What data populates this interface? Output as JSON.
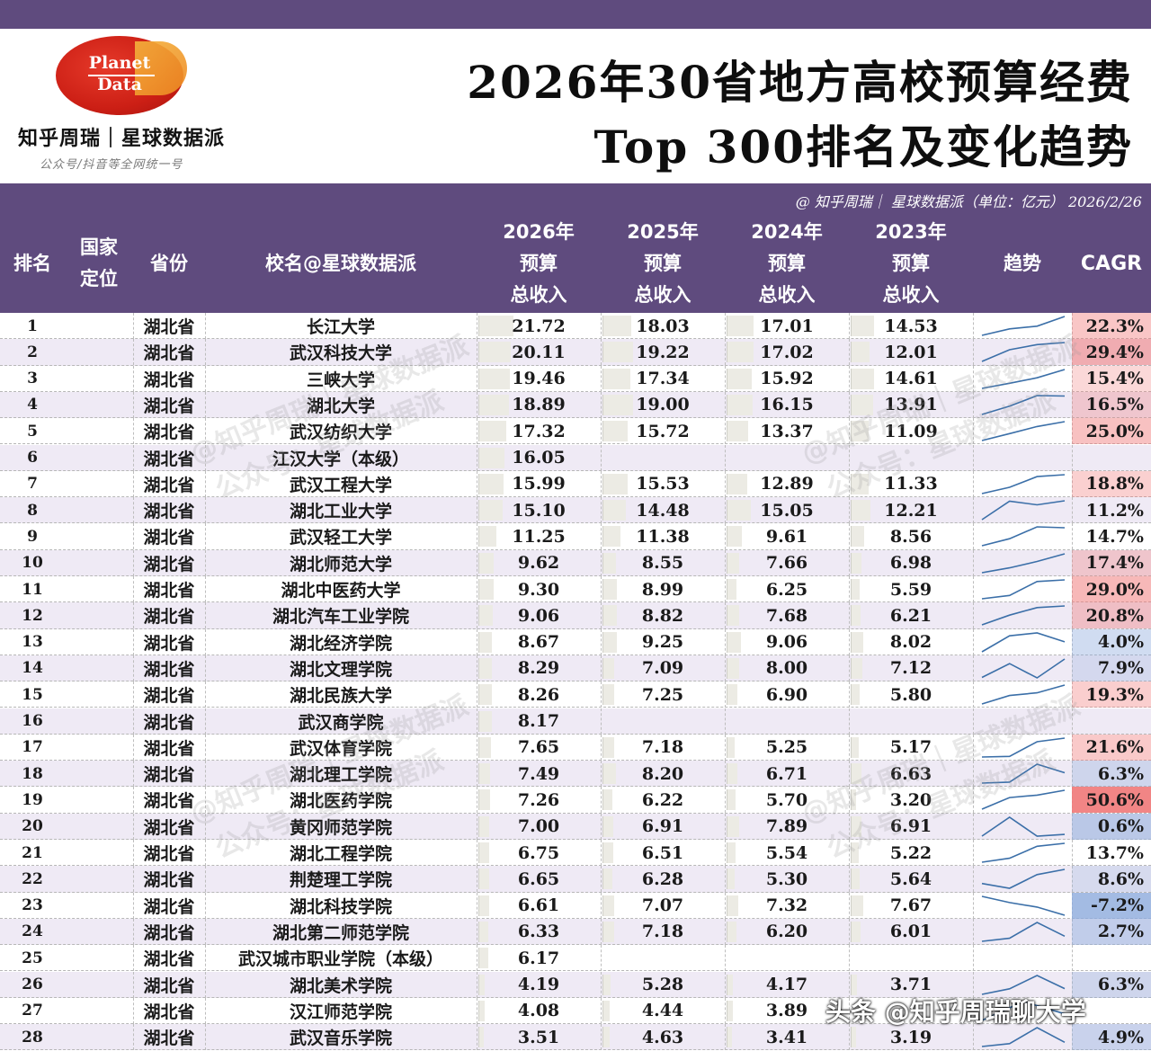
{
  "logo": {
    "line1": "Planet",
    "line2": "Data"
  },
  "brand": {
    "name": "知乎周瑞｜星球数据派",
    "sub": "公众号/抖音等全网统一号"
  },
  "title": {
    "line1": "2026年30省地方高校预算经费",
    "line2": "Top 300排名及变化趋势"
  },
  "credit": "@ 知乎周瑞｜ 星球数据派（单位：亿元） 2026/2/26",
  "headers": {
    "rank": [
      "排名"
    ],
    "national": [
      "国家",
      "定位"
    ],
    "province": [
      "省份"
    ],
    "school": [
      "校名@星球数据派"
    ],
    "y2026": [
      "2026年",
      "预算",
      "总收入"
    ],
    "y2025": [
      "2025年",
      "预算",
      "总收入"
    ],
    "y2024": [
      "2024年",
      "预算",
      "总收入"
    ],
    "y2023": [
      "2023年",
      "预算",
      "总收入"
    ],
    "trend": [
      "趋势"
    ],
    "cagr": [
      "CAGR"
    ]
  },
  "colors": {
    "header_bg": "#5f4b7e",
    "cagr_pos": "#f08a8a",
    "cagr_neg": "#9fb8e0"
  },
  "rows": [
    {
      "rank": "1",
      "prov": "湖北省",
      "school": "长江大学",
      "v2026": "21.72",
      "v2025": "18.03",
      "v2024": "17.01",
      "v2023": "14.53",
      "cagr": "22.3%",
      "c": 22.3
    },
    {
      "rank": "2",
      "prov": "湖北省",
      "school": "武汉科技大学",
      "v2026": "20.11",
      "v2025": "19.22",
      "v2024": "17.02",
      "v2023": "12.01",
      "cagr": "29.4%",
      "c": 29.4
    },
    {
      "rank": "3",
      "prov": "湖北省",
      "school": "三峡大学",
      "v2026": "19.46",
      "v2025": "17.34",
      "v2024": "15.92",
      "v2023": "14.61",
      "cagr": "15.4%",
      "c": 15.4
    },
    {
      "rank": "4",
      "prov": "湖北省",
      "school": "湖北大学",
      "v2026": "18.89",
      "v2025": "19.00",
      "v2024": "16.15",
      "v2023": "13.91",
      "cagr": "16.5%",
      "c": 16.5
    },
    {
      "rank": "5",
      "prov": "湖北省",
      "school": "武汉纺织大学",
      "v2026": "17.32",
      "v2025": "15.72",
      "v2024": "13.37",
      "v2023": "11.09",
      "cagr": "25.0%",
      "c": 25.0
    },
    {
      "rank": "6",
      "prov": "湖北省",
      "school": "江汉大学（本级）",
      "v2026": "16.05",
      "v2025": "",
      "v2024": "",
      "v2023": "",
      "cagr": "",
      "c": null
    },
    {
      "rank": "7",
      "prov": "湖北省",
      "school": "武汉工程大学",
      "v2026": "15.99",
      "v2025": "15.53",
      "v2024": "12.89",
      "v2023": "11.33",
      "cagr": "18.8%",
      "c": 18.8
    },
    {
      "rank": "8",
      "prov": "湖北省",
      "school": "湖北工业大学",
      "v2026": "15.10",
      "v2025": "14.48",
      "v2024": "15.05",
      "v2023": "12.21",
      "cagr": "11.2%",
      "c": 11.2
    },
    {
      "rank": "9",
      "prov": "湖北省",
      "school": "武汉轻工大学",
      "v2026": "11.25",
      "v2025": "11.38",
      "v2024": "9.61",
      "v2023": "8.56",
      "cagr": "14.7%",
      "c": 14.7
    },
    {
      "rank": "10",
      "prov": "湖北省",
      "school": "湖北师范大学",
      "v2026": "9.62",
      "v2025": "8.55",
      "v2024": "7.66",
      "v2023": "6.98",
      "cagr": "17.4%",
      "c": 17.4
    },
    {
      "rank": "11",
      "prov": "湖北省",
      "school": "湖北中医药大学",
      "v2026": "9.30",
      "v2025": "8.99",
      "v2024": "6.25",
      "v2023": "5.59",
      "cagr": "29.0%",
      "c": 29.0
    },
    {
      "rank": "12",
      "prov": "湖北省",
      "school": "湖北汽车工业学院",
      "v2026": "9.06",
      "v2025": "8.82",
      "v2024": "7.68",
      "v2023": "6.21",
      "cagr": "20.8%",
      "c": 20.8
    },
    {
      "rank": "13",
      "prov": "湖北省",
      "school": "湖北经济学院",
      "v2026": "8.67",
      "v2025": "9.25",
      "v2024": "9.06",
      "v2023": "8.02",
      "cagr": "4.0%",
      "c": 4.0
    },
    {
      "rank": "14",
      "prov": "湖北省",
      "school": "湖北文理学院",
      "v2026": "8.29",
      "v2025": "7.09",
      "v2024": "8.00",
      "v2023": "7.12",
      "cagr": "7.9%",
      "c": 7.9
    },
    {
      "rank": "15",
      "prov": "湖北省",
      "school": "湖北民族大学",
      "v2026": "8.26",
      "v2025": "7.25",
      "v2024": "6.90",
      "v2023": "5.80",
      "cagr": "19.3%",
      "c": 19.3
    },
    {
      "rank": "16",
      "prov": "湖北省",
      "school": "武汉商学院",
      "v2026": "8.17",
      "v2025": "",
      "v2024": "",
      "v2023": "",
      "cagr": "",
      "c": null
    },
    {
      "rank": "17",
      "prov": "湖北省",
      "school": "武汉体育学院",
      "v2026": "7.65",
      "v2025": "7.18",
      "v2024": "5.25",
      "v2023": "5.17",
      "cagr": "21.6%",
      "c": 21.6
    },
    {
      "rank": "18",
      "prov": "湖北省",
      "school": "湖北理工学院",
      "v2026": "7.49",
      "v2025": "8.20",
      "v2024": "6.71",
      "v2023": "6.63",
      "cagr": "6.3%",
      "c": 6.3
    },
    {
      "rank": "19",
      "prov": "湖北省",
      "school": "湖北医药学院",
      "v2026": "7.26",
      "v2025": "6.22",
      "v2024": "5.70",
      "v2023": "3.20",
      "cagr": "50.6%",
      "c": 50.6
    },
    {
      "rank": "20",
      "prov": "湖北省",
      "school": "黄冈师范学院",
      "v2026": "7.00",
      "v2025": "6.91",
      "v2024": "7.89",
      "v2023": "6.91",
      "cagr": "0.6%",
      "c": 0.6
    },
    {
      "rank": "21",
      "prov": "湖北省",
      "school": "湖北工程学院",
      "v2026": "6.75",
      "v2025": "6.51",
      "v2024": "5.54",
      "v2023": "5.22",
      "cagr": "13.7%",
      "c": 13.7
    },
    {
      "rank": "22",
      "prov": "湖北省",
      "school": "荆楚理工学院",
      "v2026": "6.65",
      "v2025": "6.28",
      "v2024": "5.30",
      "v2023": "5.64",
      "cagr": "8.6%",
      "c": 8.6
    },
    {
      "rank": "23",
      "prov": "湖北省",
      "school": "湖北科技学院",
      "v2026": "6.61",
      "v2025": "7.07",
      "v2024": "7.32",
      "v2023": "7.67",
      "cagr": "-7.2%",
      "c": -7.2
    },
    {
      "rank": "24",
      "prov": "湖北省",
      "school": "湖北第二师范学院",
      "v2026": "6.33",
      "v2025": "7.18",
      "v2024": "6.20",
      "v2023": "6.01",
      "cagr": "2.7%",
      "c": 2.7
    },
    {
      "rank": "25",
      "prov": "湖北省",
      "school": "武汉城市职业学院（本级）",
      "v2026": "6.17",
      "v2025": "",
      "v2024": "",
      "v2023": "",
      "cagr": "",
      "c": null
    },
    {
      "rank": "26",
      "prov": "湖北省",
      "school": "湖北美术学院",
      "v2026": "4.19",
      "v2025": "5.28",
      "v2024": "4.17",
      "v2023": "3.71",
      "cagr": "6.3%",
      "c": 6.3
    },
    {
      "rank": "27",
      "prov": "湖北省",
      "school": "汉江师范学院",
      "v2026": "4.08",
      "v2025": "4.44",
      "v2024": "3.89",
      "v2023": "",
      "cagr": "",
      "c": null
    },
    {
      "rank": "28",
      "prov": "湖北省",
      "school": "武汉音乐学院",
      "v2026": "3.51",
      "v2025": "4.63",
      "v2024": "3.41",
      "v2023": "3.19",
      "cagr": "4.9%",
      "c": 4.9
    }
  ],
  "watermarks": [
    "@知乎周瑞｜星球数据派",
    "公众号：星球数据派"
  ],
  "footer": "头条 @知乎周瑞聊大学"
}
